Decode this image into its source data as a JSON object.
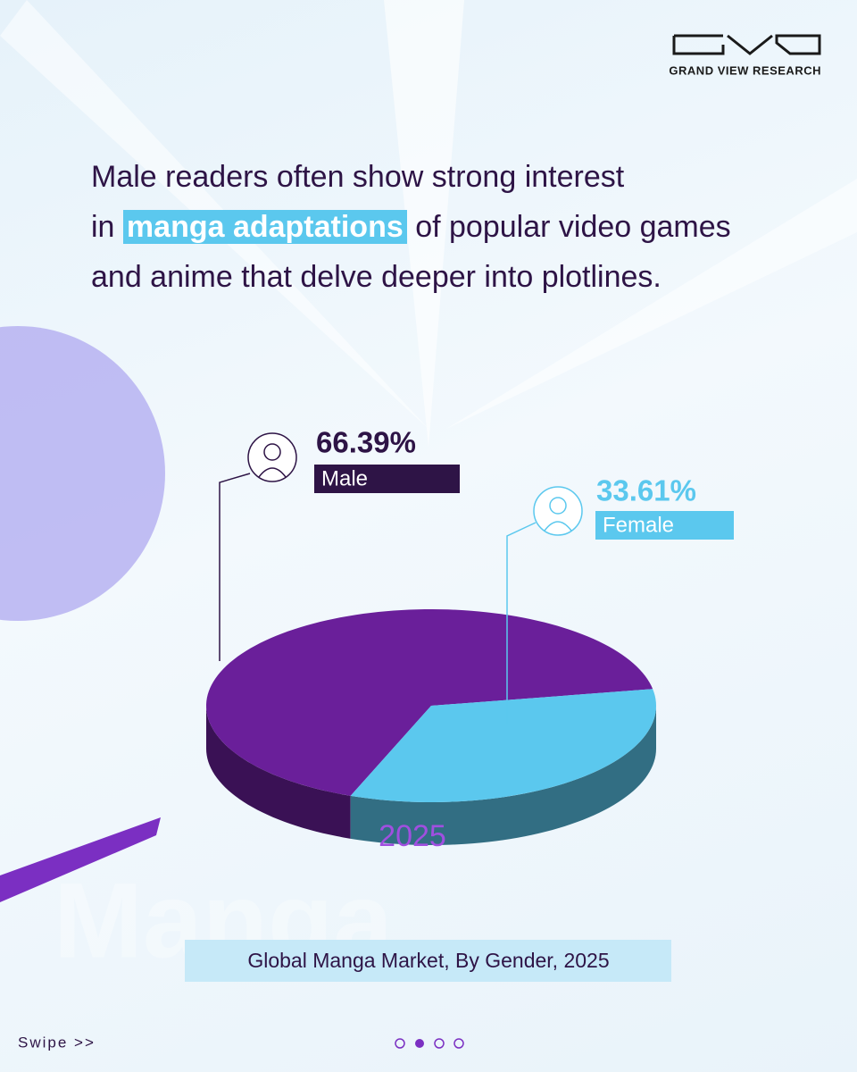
{
  "brand": "GRAND VIEW RESEARCH",
  "headline": [
    "Male readers often show strong interest",
    "in",
    "manga adaptations",
    "of popular video games",
    "and anime that delve deeper into plotlines."
  ],
  "chart_data": {
    "type": "pie",
    "title": "Global Manga Market, By Gender, 2025",
    "center_label": "2025",
    "categories": [
      "Male",
      "Female"
    ],
    "values": [
      66.39,
      33.61
    ],
    "value_labels": [
      "66.39%",
      "33.61%"
    ],
    "colors": [
      "#6a1f9a",
      "#5bc8ee"
    ]
  },
  "footer": {
    "swipe": "Swipe >>"
  }
}
